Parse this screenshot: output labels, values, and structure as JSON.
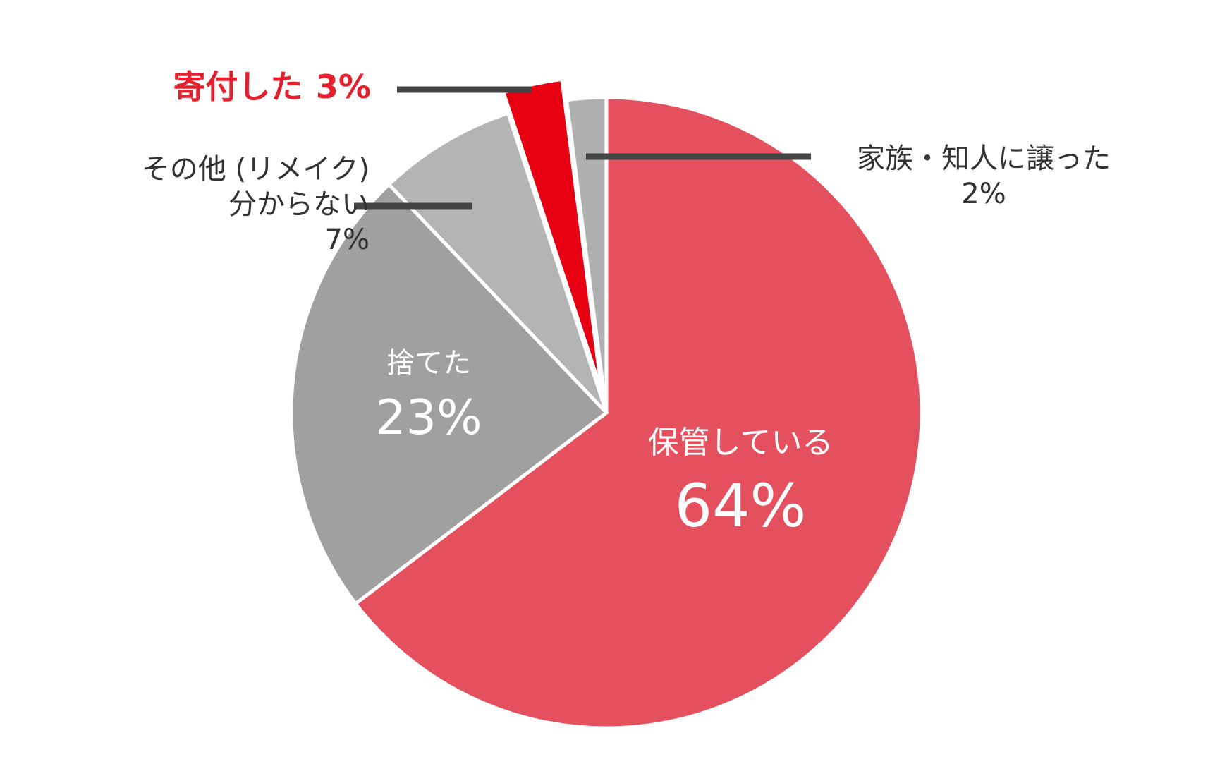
{
  "chart_data": {
    "type": "pie",
    "categories": [
      "保管している",
      "捨てた",
      "その他 (リメイク)\n分からない",
      "寄付した",
      "家族・知人に譲った"
    ],
    "values": [
      64,
      23,
      7,
      3,
      2
    ],
    "value_labels": [
      "64%",
      "23%",
      "7%",
      "3%",
      "2%"
    ],
    "colors": [
      "#e5505e",
      "#a0a0a0",
      "#b4b4b4",
      "#e60012",
      "#b0b0b0"
    ]
  }
}
